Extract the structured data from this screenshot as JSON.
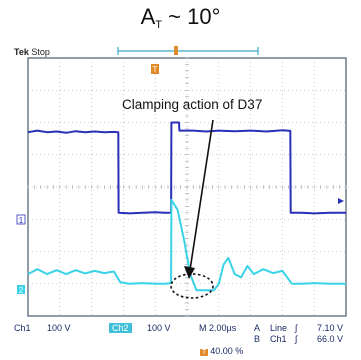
{
  "heading": {
    "main": "A",
    "sub": "T",
    "rest": " ~ 10°"
  },
  "scope": {
    "brand": "Tek",
    "state": "Stop",
    "trigger_marker": "T",
    "ch1_marker": "1",
    "ch2_marker": "2",
    "ch1_label": "Ch1",
    "ch1_scale": "100 V",
    "ch2_label": "Ch2",
    "ch2_scale": "100 V",
    "time_base": "M 2.00µs",
    "trig_a_label": "A",
    "trig_a_source": "Line",
    "trig_a_level": "7.10 V",
    "trig_b_label": "B",
    "trig_b_source": "Ch1",
    "trig_b_level": "66.0 V",
    "trig_position": "40.00 %"
  },
  "annotation": "Clamping action of D37",
  "colors": {
    "ch1": "#2a2fb8",
    "ch2": "#39d3e8",
    "grid": "#9aa3b0",
    "border": "#4a5a70",
    "trigger": "#e08a2a"
  },
  "chart_data": {
    "type": "line",
    "title": "",
    "xlabel": "",
    "ylabel": "",
    "x_divisions": 10,
    "y_divisions": 8,
    "grid": true,
    "series": [
      {
        "name": "Ch1",
        "x": [
          0,
          0.3,
          0.6,
          0.9,
          1.2,
          1.5,
          1.8,
          2.1,
          2.4,
          2.7,
          2.84,
          2.85,
          3.2,
          3.6,
          4.0,
          4.3,
          4.5,
          4.51,
          4.7,
          4.75,
          4.76,
          5.2,
          5.6,
          6.0,
          6.5,
          7.0,
          7.5,
          8.0,
          8.25,
          8.26,
          8.6,
          9.0,
          9.5,
          10.0
        ],
        "y": [
          5.7,
          5.75,
          5.7,
          5.72,
          5.68,
          5.73,
          5.7,
          5.72,
          5.7,
          5.71,
          5.7,
          3.2,
          3.18,
          3.2,
          3.22,
          3.2,
          3.2,
          6.0,
          6.0,
          6.0,
          5.75,
          5.75,
          5.72,
          5.75,
          5.73,
          5.75,
          5.72,
          5.76,
          5.74,
          3.2,
          3.2,
          3.18,
          3.2,
          3.2
        ]
      },
      {
        "name": "Ch2",
        "x": [
          0,
          0.3,
          0.6,
          0.9,
          1.2,
          1.5,
          1.8,
          2.1,
          2.4,
          2.7,
          2.9,
          3.2,
          3.6,
          4.0,
          4.3,
          4.5,
          4.51,
          4.7,
          4.9,
          5.1,
          5.3,
          5.5,
          5.7,
          5.85,
          6.0,
          6.15,
          6.3,
          6.5,
          6.7,
          6.9,
          7.1,
          7.4,
          7.7,
          8.0,
          8.3,
          8.6,
          9.0,
          9.5,
          10.0
        ],
        "y": [
          1.3,
          1.45,
          1.3,
          1.42,
          1.3,
          1.42,
          1.32,
          1.4,
          1.33,
          1.38,
          1.05,
          1.0,
          1.02,
          1.0,
          1.0,
          1.02,
          3.6,
          3.3,
          2.4,
          1.3,
          0.8,
          0.8,
          0.8,
          0.8,
          1.0,
          1.6,
          1.8,
          1.3,
          1.2,
          1.55,
          1.3,
          1.45,
          1.33,
          1.4,
          1.0,
          1.0,
          1.02,
          1.0,
          1.0
        ]
      }
    ]
  }
}
